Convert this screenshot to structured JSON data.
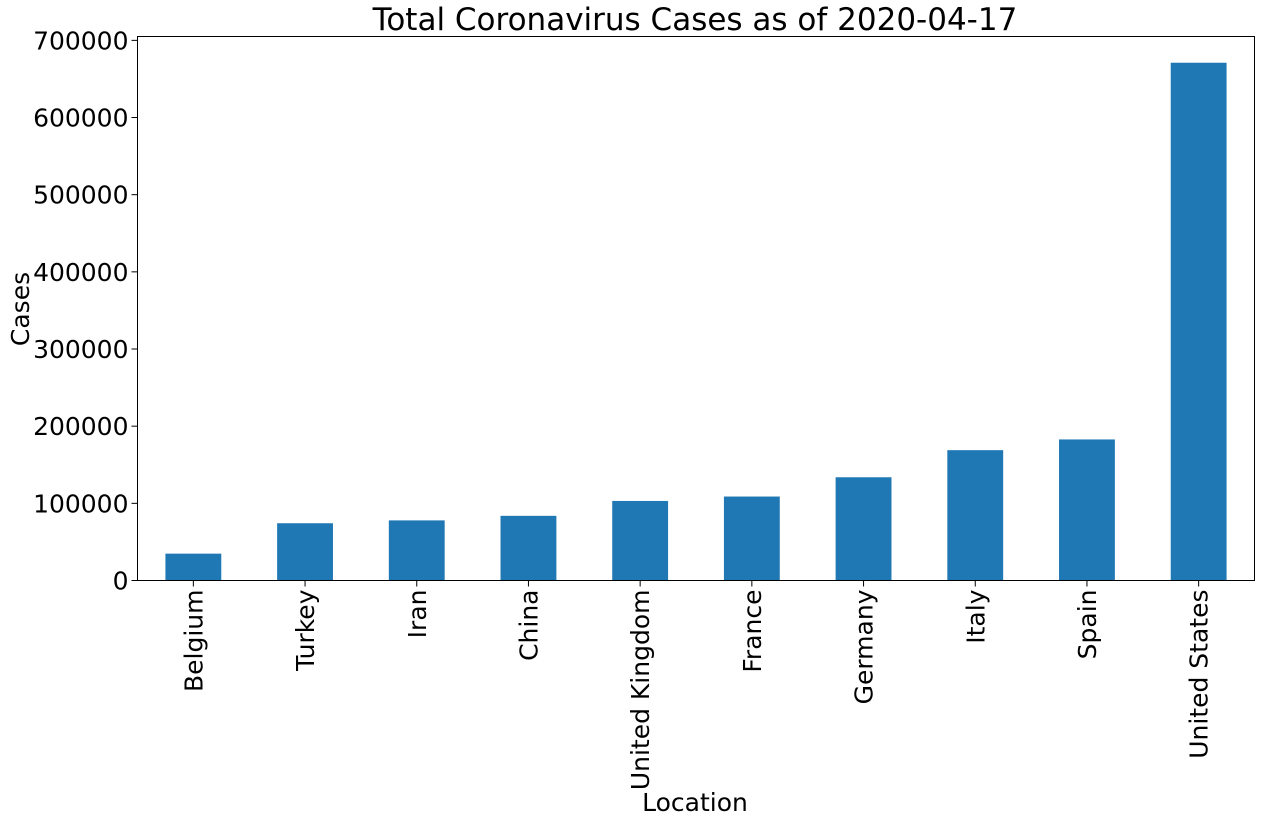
{
  "chart_data": {
    "type": "bar",
    "title": "Total Coronavirus Cases as of 2020-04-17",
    "xlabel": "Location",
    "ylabel": "Cases",
    "categories": [
      "Belgium",
      "Turkey",
      "Iran",
      "China",
      "United Kingdom",
      "France",
      "Germany",
      "Italy",
      "Spain",
      "United States"
    ],
    "values": [
      34800,
      74200,
      77900,
      83800,
      103100,
      108800,
      133800,
      168900,
      182800,
      671000
    ],
    "ylim": [
      0,
      705000
    ],
    "yticks": [
      0,
      100000,
      200000,
      300000,
      400000,
      500000,
      600000,
      700000
    ],
    "ytick_labels": [
      "0",
      "100000",
      "200000",
      "300000",
      "400000",
      "500000",
      "600000",
      "700000"
    ],
    "bar_color": "#1f77b4",
    "grid": false,
    "legend": "none"
  }
}
